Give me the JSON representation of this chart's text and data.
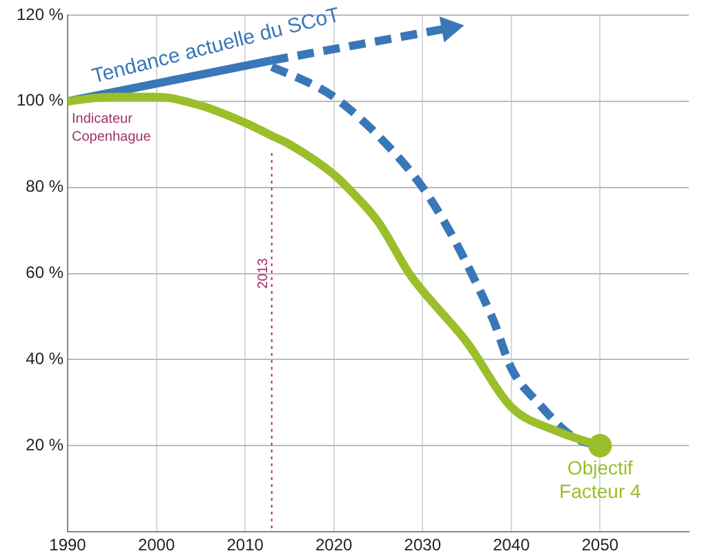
{
  "chart_data": {
    "type": "line",
    "x": [
      1990,
      1995,
      2000,
      2005,
      2010,
      2013,
      2015,
      2020,
      2022,
      2025,
      2028.5,
      2030,
      2035,
      2040,
      2045,
      2050
    ],
    "xlim": [
      1990,
      2060
    ],
    "xticks": [
      1990,
      2000,
      2010,
      2020,
      2030,
      2040,
      2050
    ],
    "ylim": [
      0,
      120
    ],
    "yticks": [
      {
        "value": 0,
        "label": null
      },
      {
        "value": 20,
        "label": "20 %"
      },
      {
        "value": 40,
        "label": "40 %"
      },
      {
        "value": 60,
        "label": "60 %"
      },
      {
        "value": 80,
        "label": "80 %"
      },
      {
        "value": 100,
        "label": "100 %"
      },
      {
        "value": 120,
        "label": "120 %"
      }
    ],
    "grid": true,
    "legend": false,
    "marker": "none",
    "line_style": "solid",
    "series": [
      {
        "color": "#9bbf2a",
        "values": [
          100,
          101,
          101,
          99,
          95,
          92,
          90,
          83,
          79,
          72,
          60,
          56,
          44,
          29,
          23.5,
          20
        ]
      },
      {
        "name": "Tendance actuelle du SCoT",
        "color": "#3a77b8",
        "x": [
          1990,
          2013
        ],
        "values": [
          100,
          109.5
        ]
      },
      {
        "color": "#3a77b8",
        "line_style": "dashed",
        "marker": "triangle",
        "x": [
          2013,
          2033
        ],
        "values": [
          109.5,
          117
        ]
      },
      {
        "color": "#3a77b8",
        "line_style": "dashed",
        "x": [
          2013,
          2017.5,
          2020,
          2025,
          2030,
          2033,
          2036,
          2038,
          2040,
          2043,
          2047,
          2050
        ],
        "values": [
          108,
          104,
          101,
          92,
          80,
          70,
          58,
          49,
          38,
          30,
          22,
          20
        ]
      },
      {
        "type": "scatter",
        "color": "#9bbf2a",
        "marker": "circle",
        "x": [
          2050
        ],
        "values": [
          20
        ]
      }
    ],
    "ref_lines": [
      {
        "axis": "x",
        "value": 2013,
        "label": "2013",
        "color": "#a0306a",
        "line_style": "dotted"
      }
    ],
    "annotations": [
      {
        "text": "Indicateur Copenhague",
        "x": 1990,
        "y": 100
      },
      {
        "text": "Objectif Facteur 4",
        "x": 2050,
        "y": 20
      }
    ]
  }
}
